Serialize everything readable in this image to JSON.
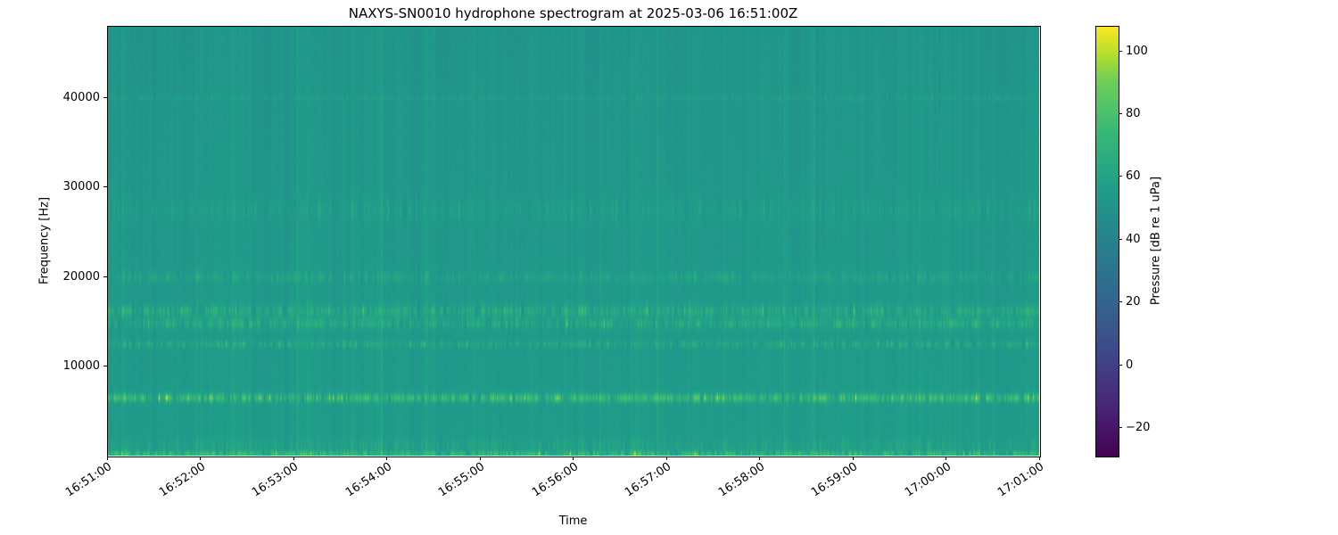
{
  "chart_data": {
    "type": "heatmap",
    "title": "NAXYS-SN0010 hydrophone spectrogram at 2025-03-06 16:51:00Z",
    "xlabel": "Time",
    "ylabel": "Frequency [Hz]",
    "x_range_minutes": [
      0,
      10
    ],
    "y_range_hz": [
      0,
      48000
    ],
    "x_ticks": [
      {
        "minute": 0,
        "label": "16:51:00"
      },
      {
        "minute": 1,
        "label": "16:52:00"
      },
      {
        "minute": 2,
        "label": "16:53:00"
      },
      {
        "minute": 3,
        "label": "16:54:00"
      },
      {
        "minute": 4,
        "label": "16:55:00"
      },
      {
        "minute": 5,
        "label": "16:56:00"
      },
      {
        "minute": 6,
        "label": "16:57:00"
      },
      {
        "minute": 7,
        "label": "16:58:00"
      },
      {
        "minute": 8,
        "label": "16:59:00"
      },
      {
        "minute": 9,
        "label": "17:00:00"
      },
      {
        "minute": 10,
        "label": "17:01:00"
      }
    ],
    "y_ticks": [
      {
        "value": 10000,
        "label": "10000"
      },
      {
        "value": 20000,
        "label": "20000"
      },
      {
        "value": 30000,
        "label": "30000"
      },
      {
        "value": 40000,
        "label": "40000"
      }
    ],
    "colorbar": {
      "label": "Pressure [dB re 1 uPa]",
      "vmin": -29,
      "vmax": 108,
      "ticks": [
        {
          "value": 100,
          "label": "100"
        },
        {
          "value": 80,
          "label": "80"
        },
        {
          "value": 60,
          "label": "60"
        },
        {
          "value": 40,
          "label": "40"
        },
        {
          "value": 20,
          "label": "20"
        },
        {
          "value": 0,
          "label": "0"
        },
        {
          "value": -20,
          "label": "−20"
        }
      ],
      "colormap": "viridis",
      "colormap_stops": [
        [
          0.0,
          "#440154"
        ],
        [
          0.125,
          "#482878"
        ],
        [
          0.25,
          "#3e4a89"
        ],
        [
          0.375,
          "#31688e"
        ],
        [
          0.5,
          "#26828e"
        ],
        [
          0.625,
          "#1f9e89"
        ],
        [
          0.75,
          "#35b779"
        ],
        [
          0.875,
          "#6ece58"
        ],
        [
          0.9375,
          "#b5de2b"
        ],
        [
          1.0,
          "#fde725"
        ]
      ]
    },
    "spectrogram_model": {
      "background_db_at_0hz": 55.5,
      "background_db_at_48khz": 51.5,
      "bands": [
        {
          "center_hz": 200,
          "sigma_hz": 260,
          "gain_db": 12,
          "speckle_db": 18
        },
        {
          "center_hz": 1100,
          "sigma_hz": 600,
          "gain_db": 3,
          "speckle_db": 6
        },
        {
          "center_hz": 6500,
          "sigma_hz": 350,
          "gain_db": 15,
          "speckle_db": 20
        },
        {
          "center_hz": 12500,
          "sigma_hz": 280,
          "gain_db": 6,
          "speckle_db": 11
        },
        {
          "center_hz": 14800,
          "sigma_hz": 420,
          "gain_db": 7,
          "speckle_db": 12
        },
        {
          "center_hz": 16200,
          "sigma_hz": 480,
          "gain_db": 7,
          "speckle_db": 12
        },
        {
          "center_hz": 20000,
          "sigma_hz": 430,
          "gain_db": 4,
          "speckle_db": 8
        },
        {
          "center_hz": 27500,
          "sigma_hz": 900,
          "gain_db": 2.5,
          "speckle_db": 6
        },
        {
          "center_hz": 40000,
          "sigma_hz": 220,
          "gain_db": 3,
          "speckle_db": 5
        }
      ],
      "column_noise_db": 2.2,
      "pixel_noise_db": 1.4,
      "seed": 20250306
    }
  }
}
